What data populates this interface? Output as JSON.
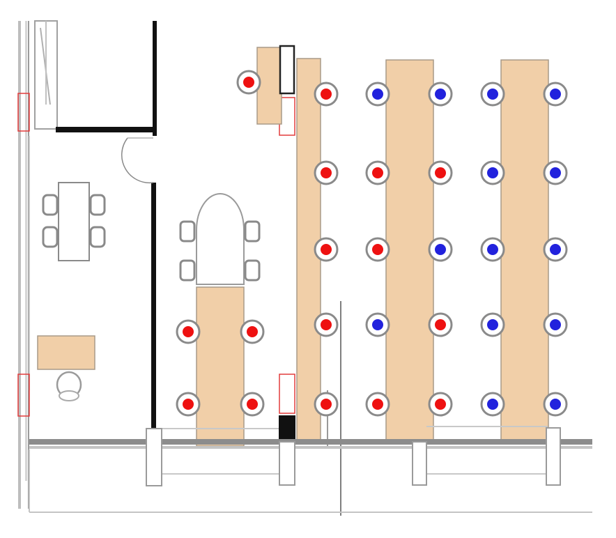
{
  "colors": {
    "desk": "#f1cfa8",
    "occupied": "#ee1111",
    "available": "#2222dd",
    "wall": "#111111",
    "partition": "#8c8c8c",
    "outline": "#777777",
    "door_marker": "#e23b3b"
  },
  "legend_meaning": {
    "occupied_color": "red",
    "available_color": "blue"
  },
  "desk_rows": [
    {
      "name": "desk-row-1",
      "seats": [
        "occupied",
        "occupied",
        "occupied",
        "occupied",
        "occupied"
      ]
    },
    {
      "name": "desk-row-2",
      "seats": [
        "available",
        "available",
        "occupied",
        "occupied",
        "occupied",
        "available",
        "available",
        "occupied",
        "occupied",
        "occupied"
      ]
    },
    {
      "name": "desk-row-3",
      "seats": [
        "available",
        "available",
        "available",
        "available",
        "available",
        "available",
        "available",
        "available",
        "available",
        "available"
      ]
    }
  ],
  "meeting_table_seats": [
    "occupied",
    "occupied",
    "occupied",
    "occupied"
  ],
  "corner_seat": "occupied"
}
